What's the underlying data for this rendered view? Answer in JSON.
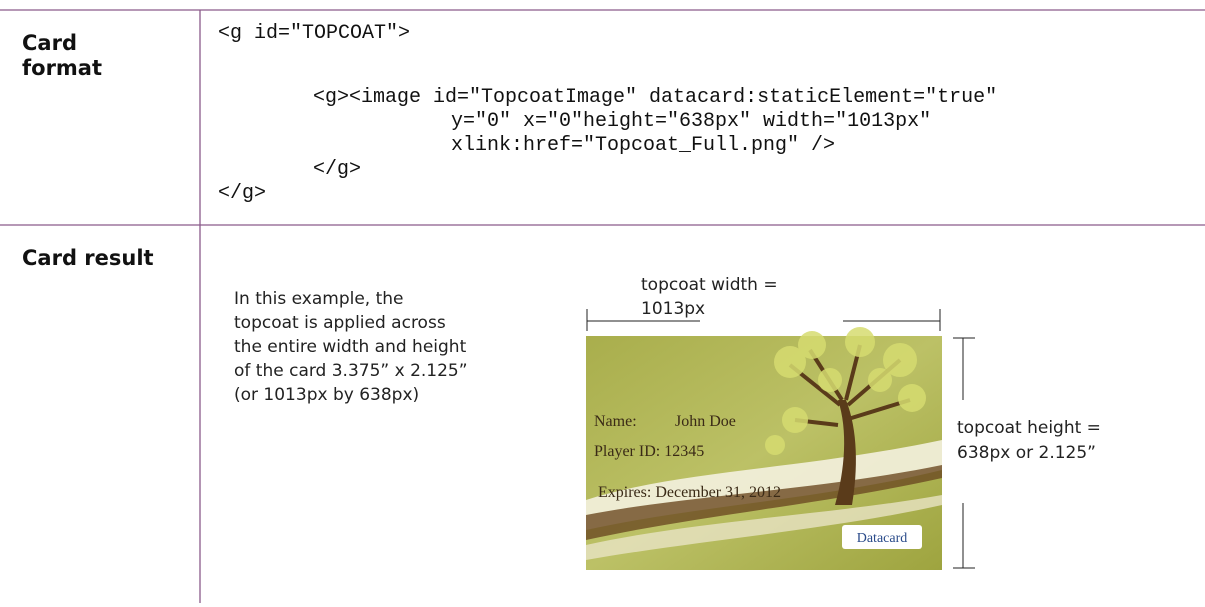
{
  "table": {
    "rows": [
      {
        "label": "Card format",
        "code": [
          "<g id=\"TOPCOAT\">",
          "<g><image id=\"TopcoatImage\" datacard:staticElement=\"true\"",
          "y=\"0\" x=\"0\"height=\"638px\" width=\"1013px\"",
          "xlink:href=\"Topcoat_Full.png\" />",
          "</g>",
          "</g>"
        ]
      },
      {
        "label": "Card result",
        "description": [
          "In this example, the",
          "topcoat is applied across",
          "the entire width and height",
          "of the card 3.375” x 2.125”",
          "(or 1013px by 638px)"
        ],
        "width_label": [
          "topcoat width =",
          "1013px"
        ],
        "height_label": [
          "topcoat height =",
          "638px or 2.125”"
        ],
        "card": {
          "name_label": "Name:",
          "name": "John Doe",
          "player_id": "Player ID: 12345",
          "expires": "Expires: December 31, 2012",
          "logo": "Datacard"
        }
      }
    ]
  }
}
